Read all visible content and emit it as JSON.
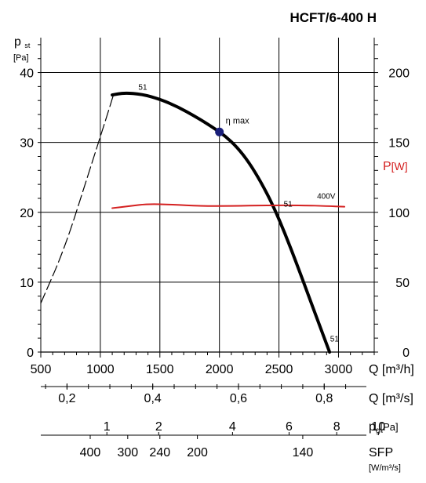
{
  "chart_data": {
    "type": "line",
    "title": "HCFT/6-400 H",
    "x_axis": {
      "label": "Q [m³/h]",
      "unit": "m³/h",
      "range": [
        500,
        3300
      ],
      "ticks": [
        500,
        1000,
        1500,
        2000,
        2500,
        3000
      ]
    },
    "y_axis_left": {
      "label_main": "p",
      "label_sub": "st",
      "unit": "[Pa]",
      "range": [
        0,
        45
      ],
      "ticks": [
        0,
        10,
        20,
        30,
        40
      ]
    },
    "y_axis_right": {
      "label_main": "P",
      "unit": "[W]",
      "color": "#d42020",
      "range": [
        0,
        225
      ],
      "ticks": [
        0,
        50,
        100,
        150,
        200
      ]
    },
    "extra_axes": [
      {
        "name": "flow_m3s",
        "label": "Q [m³/s]",
        "ticks": [
          {
            "label": "0,2",
            "q": 720
          },
          {
            "label": "0,4",
            "q": 1440
          },
          {
            "label": "0,6",
            "q": 2160
          },
          {
            "label": "0,8",
            "q": 2880
          }
        ]
      },
      {
        "name": "dynamic_pressure",
        "label_main": "p",
        "label_sub": "g",
        "label_unit": "[Pa]",
        "ticks": [
          {
            "label": "1",
            "q": 1055
          },
          {
            "label": "2",
            "q": 1490
          },
          {
            "label": "4",
            "q": 2110
          },
          {
            "label": "6",
            "q": 2585
          },
          {
            "label": "8",
            "q": 2985
          },
          {
            "label": "10",
            "q": 3335
          }
        ]
      },
      {
        "name": "sfp",
        "label": "SFP",
        "unit": "[W/m³/s]",
        "ticks": [
          {
            "label": "400",
            "q": 915
          },
          {
            "label": "300",
            "q": 1230
          },
          {
            "label": "240",
            "q": 1500
          },
          {
            "label": "200",
            "q": 1815
          },
          {
            "label": "140",
            "q": 2700
          }
        ]
      }
    ],
    "series": [
      {
        "name": "51",
        "axis": "left",
        "color": "#000000",
        "points": [
          [
            1100,
            36.8
          ],
          [
            1200,
            37.1
          ],
          [
            1350,
            36.9
          ],
          [
            1500,
            36.2
          ],
          [
            1650,
            35.1
          ],
          [
            1800,
            33.7
          ],
          [
            1950,
            32.1
          ],
          [
            2050,
            30.9
          ],
          [
            2150,
            29.3
          ],
          [
            2250,
            27.1
          ],
          [
            2350,
            24.3
          ],
          [
            2450,
            21.0
          ],
          [
            2550,
            17.0
          ],
          [
            2650,
            12.6
          ],
          [
            2750,
            8.0
          ],
          [
            2850,
            3.4
          ],
          [
            2925,
            0
          ]
        ]
      },
      {
        "name": "",
        "axis": "left",
        "color": "#000000",
        "style": "dashed",
        "points": [
          [
            500,
            7.0
          ],
          [
            700,
            14.8
          ],
          [
            900,
            25.5
          ],
          [
            1050,
            33.5
          ],
          [
            1110,
            36.8
          ]
        ]
      },
      {
        "name": "400V",
        "axis": "right",
        "color": "#d42020",
        "points": [
          [
            1100,
            103
          ],
          [
            1250,
            104.5
          ],
          [
            1400,
            106
          ],
          [
            1600,
            105.5
          ],
          [
            1850,
            104.5
          ],
          [
            2100,
            104.5
          ],
          [
            2400,
            105
          ],
          [
            2700,
            105
          ],
          [
            2900,
            104.5
          ],
          [
            3050,
            104
          ]
        ]
      }
    ],
    "annotations": [
      {
        "text": "η max",
        "x": 2000,
        "y": 31.5,
        "color": "#1a1f7a",
        "marker": "circle"
      },
      {
        "text": "51",
        "x": 1300,
        "y": 37.2
      },
      {
        "text": "51",
        "x": 2520,
        "y": 20.5
      },
      {
        "text": "51",
        "x": 2910,
        "y": 1.2
      },
      {
        "text": "400V",
        "x": 2800,
        "y": 108,
        "axis": "right",
        "color": "#d42020"
      }
    ],
    "grid": true
  }
}
